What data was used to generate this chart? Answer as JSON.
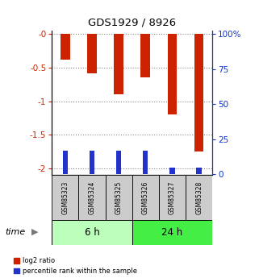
{
  "title": "GDS1929 / 8926",
  "samples": [
    "GSM85323",
    "GSM85324",
    "GSM85325",
    "GSM85326",
    "GSM85327",
    "GSM85328"
  ],
  "log2_ratio": [
    -0.38,
    -0.58,
    -0.9,
    -0.65,
    -1.2,
    -1.75
  ],
  "percentile_rank": [
    17,
    17,
    17,
    17,
    5,
    5
  ],
  "ylim_left": [
    -2.1,
    0.05
  ],
  "ylim_right": [
    -0.5,
    102.5
  ],
  "yticks_left": [
    0,
    -0.5,
    -1.0,
    -1.5,
    -2.0
  ],
  "ytick_labels_left": [
    "-0",
    "-0.5",
    "-1",
    "-1.5",
    "-2"
  ],
  "yticks_right": [
    0,
    25,
    50,
    75,
    100
  ],
  "ytick_labels_right": [
    "0",
    "25",
    "50",
    "75",
    "100%"
  ],
  "bar_color_log2": "#cc2200",
  "bar_color_pct": "#2233cc",
  "bar_width": 0.35,
  "group_labels": [
    "6 h",
    "24 h"
  ],
  "group_colors": [
    "#bbffbb",
    "#44ee44"
  ],
  "label_color_left": "#cc2200",
  "label_color_right": "#1133cc",
  "dotted_color": "#888888",
  "background_plot": "#ffffff",
  "time_label": "time",
  "legend_log2": "log2 ratio",
  "legend_pct": "percentile rank within the sample",
  "figsize": [
    3.21,
    3.45
  ],
  "dpi": 100
}
